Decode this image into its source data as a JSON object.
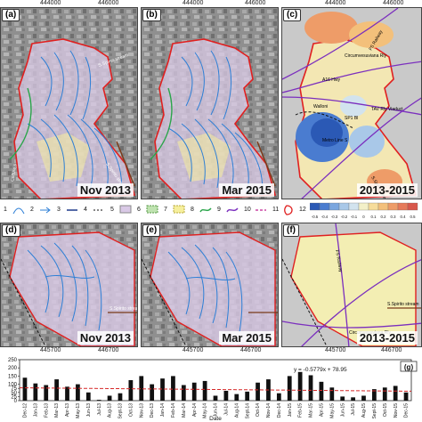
{
  "top_coords": [
    "444000",
    "446000",
    "444000",
    "446000",
    "444000",
    "446000"
  ],
  "mid_coords": [
    "445700",
    "446700",
    "445700",
    "446700",
    "445700",
    "446700"
  ],
  "panels_top": [
    {
      "letter": "(a)",
      "date": "Nov 2013"
    },
    {
      "letter": "(b)",
      "date": "Mar 2015"
    },
    {
      "letter": "(c)",
      "date": "2013-2015"
    }
  ],
  "panels_bottom": [
    {
      "letter": "(d)",
      "date": "Nov 2013"
    },
    {
      "letter": "(e)",
      "date": "Mar 2015"
    },
    {
      "letter": "(f)",
      "date": "2013-2015"
    }
  ],
  "map_labels": {
    "colture": "Colture s",
    "walloni": "Walloni",
    "metro": "Metro Line S",
    "tav": "TAV Rly Viaduct",
    "a16": "A16 Hwy",
    "circ": "Circumvesuviana Rly",
    "fs": "FS Railway",
    "spb": "SP1 Bl",
    "sspirito": "S.Spirito stream",
    "fsrail2": "FS Railway"
  },
  "legend": {
    "numbers": [
      "1",
      "2",
      "3",
      "4",
      "5",
      "6",
      "7",
      "8",
      "9",
      "10",
      "11",
      "12"
    ],
    "scale_values": [
      "-0.5",
      "-0.4",
      "-0.3",
      "-0.2",
      "-0.1",
      "0",
      "0.1",
      "0.2",
      "0.3",
      "0.4",
      "0.5"
    ],
    "scale_colors": [
      "#2b59b5",
      "#4a7cd0",
      "#7aa6df",
      "#a9c8e8",
      "#d2e3ee",
      "#f3f0c8",
      "#f6dc9a",
      "#f3c07b",
      "#ee9c68",
      "#e67a5a",
      "#d8584c"
    ]
  },
  "chart_data": {
    "type": "bar",
    "categories": [
      "Dec-12",
      "Jan-13",
      "Feb-13",
      "Mar-13",
      "Apr-13",
      "May-13",
      "Jun-13",
      "Jul-13",
      "Aug-13",
      "Sept-13",
      "Oct-13",
      "Nov-13",
      "Dec-13",
      "Jan-14",
      "Feb-14",
      "Mar-14",
      "Apr-14",
      "May-14",
      "Jun-14",
      "Jul-14",
      "Aug-14",
      "Sept-14",
      "Oct-14",
      "Nov-14",
      "Dec-14",
      "Jan-15",
      "Feb-15",
      "Mar-15",
      "Apr-15",
      "May-15",
      "Jun-15",
      "Jul-15",
      "Aug-15",
      "Sept-15",
      "Oct-15",
      "Nov-15",
      "Dec-15"
    ],
    "values": [
      140,
      105,
      95,
      130,
      85,
      100,
      50,
      5,
      30,
      45,
      125,
      150,
      100,
      135,
      150,
      95,
      110,
      120,
      30,
      60,
      40,
      55,
      110,
      130,
      45,
      150,
      175,
      155,
      115,
      80,
      25,
      20,
      30,
      70,
      80,
      90,
      50
    ],
    "trend": {
      "slope": -0.5779,
      "intercept": 78.95,
      "label": "y = -0.5779x + 78.95"
    },
    "panel_letter": "(g)",
    "xlabel": "Date",
    "yticks": [
      0,
      25,
      50,
      75,
      100,
      150,
      200,
      250
    ],
    "ylim": [
      0,
      250
    ],
    "bar_color": "#111111",
    "trend_color": "#d62828"
  }
}
